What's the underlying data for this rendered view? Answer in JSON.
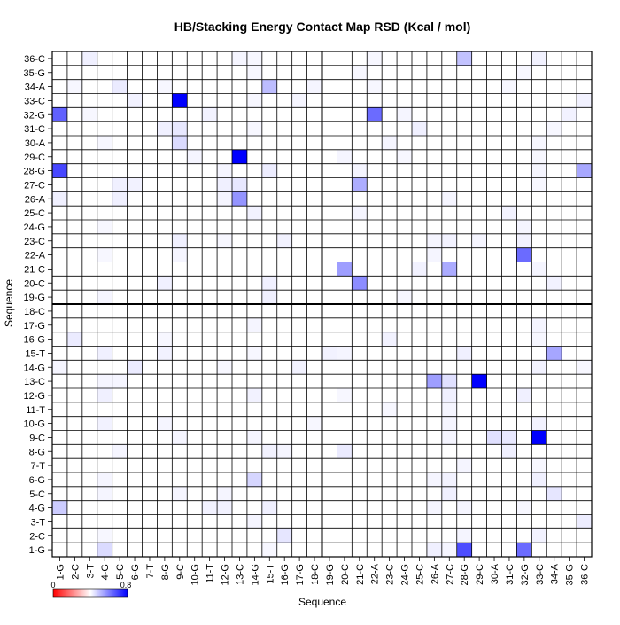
{
  "chart_data": {
    "type": "heatmap",
    "title": "HB/Stacking Energy Contact Map RSD (Kcal / mol)",
    "xlabel": "Sequence",
    "ylabel": "Sequence",
    "labels": [
      "1-G",
      "2-C",
      "3-T",
      "4-G",
      "5-C",
      "6-G",
      "7-T",
      "8-G",
      "9-C",
      "10-G",
      "11-T",
      "12-G",
      "13-C",
      "14-G",
      "15-T",
      "16-G",
      "17-G",
      "18-C",
      "19-G",
      "20-C",
      "21-C",
      "22-A",
      "23-C",
      "24-G",
      "25-C",
      "26-A",
      "27-C",
      "28-G",
      "29-C",
      "30-A",
      "31-C",
      "32-G",
      "33-C",
      "34-A",
      "35-G",
      "36-C"
    ],
    "colorbar": {
      "ticks": [
        "0",
        "0.8"
      ],
      "stops": [
        "#ff0000",
        "#ffffff",
        "#0000ff"
      ],
      "min": -0.8,
      "max": 0.8
    },
    "grid": true,
    "block_divider_after": "18-C",
    "cells": [
      [
        "3-T",
        "36-C",
        0.06
      ],
      [
        "28-G",
        "36-C",
        0.24
      ],
      [
        "33-C",
        "36-C",
        0.05
      ],
      [
        "13-C",
        "36-C",
        0.04
      ],
      [
        "22-A",
        "36-C",
        0.03
      ],
      [
        "14-G",
        "36-C",
        0.03
      ],
      [
        "14-G",
        "35-G",
        0.03
      ],
      [
        "32-G",
        "35-G",
        0.03
      ],
      [
        "21-C",
        "35-G",
        0.03
      ],
      [
        "5-C",
        "34-A",
        0.08
      ],
      [
        "15-T",
        "34-A",
        0.26
      ],
      [
        "18-C",
        "34-A",
        0.04
      ],
      [
        "2-C",
        "34-A",
        0.03
      ],
      [
        "31-C",
        "34-A",
        0.03
      ],
      [
        "22-A",
        "34-A",
        0.03
      ],
      [
        "8-G",
        "34-A",
        0.03
      ],
      [
        "9-C",
        "33-C",
        1.0
      ],
      [
        "6-G",
        "33-C",
        0.05
      ],
      [
        "14-G",
        "33-C",
        0.03
      ],
      [
        "17-G",
        "33-C",
        0.04
      ],
      [
        "36-C",
        "33-C",
        0.05
      ],
      [
        "1-G",
        "32-G",
        0.62
      ],
      [
        "22-A",
        "32-G",
        0.58
      ],
      [
        "11-T",
        "32-G",
        0.05
      ],
      [
        "24-G",
        "32-G",
        0.04
      ],
      [
        "35-G",
        "32-G",
        0.05
      ],
      [
        "3-T",
        "32-G",
        0.03
      ],
      [
        "8-G",
        "31-C",
        0.06
      ],
      [
        "9-C",
        "31-C",
        0.09
      ],
      [
        "25-C",
        "31-C",
        0.06
      ],
      [
        "14-G",
        "31-C",
        0.03
      ],
      [
        "34-A",
        "31-C",
        0.03
      ],
      [
        "9-C",
        "30-A",
        0.14
      ],
      [
        "23-C",
        "30-A",
        0.04
      ],
      [
        "33-C",
        "30-A",
        0.03
      ],
      [
        "4-G",
        "30-A",
        0.03
      ],
      [
        "13-C",
        "29-C",
        1.0
      ],
      [
        "10-G",
        "29-C",
        0.04
      ],
      [
        "20-C",
        "29-C",
        0.04
      ],
      [
        "33-C",
        "29-C",
        0.03
      ],
      [
        "24-G",
        "29-C",
        0.03
      ],
      [
        "1-G",
        "28-G",
        0.72
      ],
      [
        "36-C",
        "28-G",
        0.34
      ],
      [
        "15-T",
        "28-G",
        0.07
      ],
      [
        "12-G",
        "28-G",
        0.04
      ],
      [
        "33-C",
        "28-G",
        0.04
      ],
      [
        "21-C",
        "28-G",
        0.04
      ],
      [
        "21-C",
        "27-C",
        0.32
      ],
      [
        "5-C",
        "27-C",
        0.06
      ],
      [
        "6-G",
        "27-C",
        0.05
      ],
      [
        "12-G",
        "27-C",
        0.06
      ],
      [
        "13-C",
        "27-C",
        0.09
      ],
      [
        "33-C",
        "27-C",
        0.03
      ],
      [
        "13-C",
        "26-A",
        0.42
      ],
      [
        "1-G",
        "26-A",
        0.06
      ],
      [
        "5-C",
        "26-A",
        0.06
      ],
      [
        "12-G",
        "26-A",
        0.04
      ],
      [
        "27-C",
        "26-A",
        0.04
      ],
      [
        "14-G",
        "25-C",
        0.05
      ],
      [
        "21-C",
        "25-C",
        0.04
      ],
      [
        "31-C",
        "25-C",
        0.05
      ],
      [
        "32-G",
        "24-G",
        0.04
      ],
      [
        "4-G",
        "24-G",
        0.03
      ],
      [
        "9-C",
        "23-C",
        0.06
      ],
      [
        "16-G",
        "23-C",
        0.05
      ],
      [
        "26-A",
        "23-C",
        0.04
      ],
      [
        "27-C",
        "23-C",
        0.05
      ],
      [
        "29-C",
        "23-C",
        0.04
      ],
      [
        "32-G",
        "23-C",
        0.05
      ],
      [
        "12-G",
        "23-C",
        0.03
      ],
      [
        "32-G",
        "22-A",
        0.58
      ],
      [
        "9-C",
        "22-A",
        0.04
      ],
      [
        "4-G",
        "22-A",
        0.03
      ],
      [
        "26-A",
        "22-A",
        0.04
      ],
      [
        "20-C",
        "21-C",
        0.38
      ],
      [
        "27-C",
        "21-C",
        0.33
      ],
      [
        "25-C",
        "21-C",
        0.05
      ],
      [
        "33-C",
        "21-C",
        0.04
      ],
      [
        "21-C",
        "20-C",
        0.45
      ],
      [
        "8-G",
        "20-C",
        0.06
      ],
      [
        "15-T",
        "20-C",
        0.06
      ],
      [
        "34-A",
        "20-C",
        0.05
      ],
      [
        "15-T",
        "19-G",
        0.06
      ],
      [
        "4-G",
        "19-G",
        0.04
      ],
      [
        "24-G",
        "19-G",
        0.03
      ],
      [
        "14-G",
        "17-G",
        0.04
      ],
      [
        "33-C",
        "17-G",
        0.04
      ],
      [
        "2-C",
        "16-G",
        0.08
      ],
      [
        "8-G",
        "16-G",
        0.03
      ],
      [
        "23-C",
        "16-G",
        0.05
      ],
      [
        "33-C",
        "16-G",
        0.03
      ],
      [
        "4-G",
        "15-T",
        0.06
      ],
      [
        "8-G",
        "15-T",
        0.05
      ],
      [
        "19-G",
        "15-T",
        0.05
      ],
      [
        "20-C",
        "15-T",
        0.04
      ],
      [
        "28-G",
        "15-T",
        0.06
      ],
      [
        "34-A",
        "15-T",
        0.35
      ],
      [
        "14-G",
        "15-T",
        0.03
      ],
      [
        "6-G",
        "14-G",
        0.08
      ],
      [
        "17-G",
        "14-G",
        0.05
      ],
      [
        "1-G",
        "14-G",
        0.04
      ],
      [
        "33-C",
        "14-G",
        0.05
      ],
      [
        "12-G",
        "14-G",
        0.03
      ],
      [
        "36-C",
        "14-G",
        0.03
      ],
      [
        "26-A",
        "13-C",
        0.38
      ],
      [
        "27-C",
        "13-C",
        0.12
      ],
      [
        "29-C",
        "13-C",
        1.0
      ],
      [
        "4-G",
        "13-C",
        0.04
      ],
      [
        "5-C",
        "13-C",
        0.04
      ],
      [
        "4-G",
        "12-G",
        0.06
      ],
      [
        "14-G",
        "12-G",
        0.05
      ],
      [
        "27-C",
        "12-G",
        0.06
      ],
      [
        "32-G",
        "12-G",
        0.06
      ],
      [
        "20-C",
        "12-G",
        0.03
      ],
      [
        "27-C",
        "11-T",
        0.04
      ],
      [
        "23-C",
        "11-T",
        0.03
      ],
      [
        "4-G",
        "10-G",
        0.05
      ],
      [
        "8-G",
        "10-G",
        0.04
      ],
      [
        "33-C",
        "10-G",
        0.05
      ],
      [
        "27-C",
        "10-G",
        0.04
      ],
      [
        "18-C",
        "10-G",
        0.03
      ],
      [
        "30-A",
        "9-C",
        0.12
      ],
      [
        "31-C",
        "9-C",
        0.09
      ],
      [
        "33-C",
        "9-C",
        1.0
      ],
      [
        "9-C",
        "9-C",
        0.04
      ],
      [
        "14-G",
        "9-C",
        0.04
      ],
      [
        "27-C",
        "9-C",
        0.04
      ],
      [
        "20-C",
        "8-G",
        0.08
      ],
      [
        "31-C",
        "8-G",
        0.06
      ],
      [
        "15-T",
        "8-G",
        0.05
      ],
      [
        "5-C",
        "8-G",
        0.04
      ],
      [
        "16-G",
        "8-G",
        0.04
      ],
      [
        "28-G",
        "7-T",
        0.04
      ],
      [
        "33-C",
        "7-T",
        0.03
      ],
      [
        "14-G",
        "6-G",
        0.16
      ],
      [
        "4-G",
        "6-G",
        0.04
      ],
      [
        "26-A",
        "6-G",
        0.04
      ],
      [
        "27-C",
        "6-G",
        0.05
      ],
      [
        "33-C",
        "6-G",
        0.06
      ],
      [
        "27-C",
        "5-C",
        0.06
      ],
      [
        "34-A",
        "5-C",
        0.1
      ],
      [
        "4-G",
        "5-C",
        0.04
      ],
      [
        "9-C",
        "5-C",
        0.04
      ],
      [
        "12-G",
        "5-C",
        0.04
      ],
      [
        "1-G",
        "4-G",
        0.2
      ],
      [
        "11-T",
        "4-G",
        0.05
      ],
      [
        "12-G",
        "4-G",
        0.05
      ],
      [
        "15-T",
        "4-G",
        0.06
      ],
      [
        "26-A",
        "4-G",
        0.04
      ],
      [
        "28-G",
        "4-G",
        0.04
      ],
      [
        "32-G",
        "4-G",
        0.03
      ],
      [
        "36-C",
        "3-T",
        0.07
      ],
      [
        "14-G",
        "3-T",
        0.04
      ],
      [
        "16-G",
        "2-C",
        0.1
      ],
      [
        "33-C",
        "2-C",
        0.05
      ],
      [
        "28-G",
        "2-C",
        0.04
      ],
      [
        "4-G",
        "2-C",
        0.03
      ],
      [
        "4-G",
        "1-G",
        0.14
      ],
      [
        "28-G",
        "1-G",
        0.7
      ],
      [
        "32-G",
        "1-G",
        0.58
      ],
      [
        "26-A",
        "1-G",
        0.06
      ],
      [
        "27-C",
        "1-G",
        0.04
      ],
      [
        "15-T",
        "1-G",
        0.03
      ]
    ]
  }
}
